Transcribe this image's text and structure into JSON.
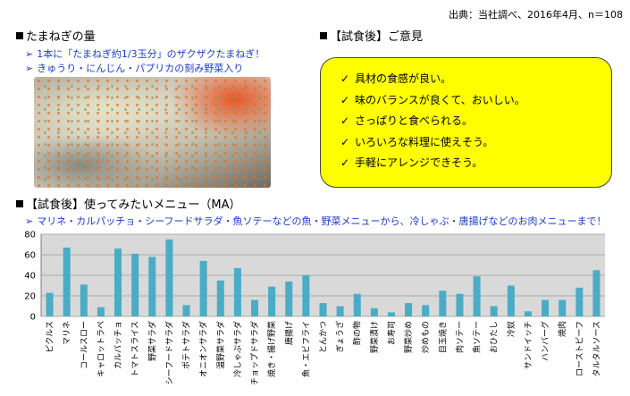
{
  "source": "出典：当社調べ、2016年4月、n＝108",
  "onion": {
    "title": "たまねぎの量",
    "bullets": [
      "1本に「たまねぎ約1/3玉分」のザクザクたまねぎ！",
      "きゅうり・にんじん・パプリカの刻み野菜入り"
    ]
  },
  "opinion": {
    "title": "【試食後】ご意見",
    "check_icon": "check-icon",
    "items": [
      "具材の食感が良い。",
      "味のバランスが良くて、おいしい。",
      "さっぱりと食べられる。",
      "いろいろな料理に使えそう。",
      "手軽にアレンジできそう。"
    ]
  },
  "menu": {
    "title": "【試食後】使ってみたいメニュー（MA）",
    "bullet": "マリネ・カルパッチョ・シーフードサラダ・魚ソテーなどの魚・野菜メニューから、冷しゃぶ・唐揚げなどのお肉メニューまで！"
  },
  "colors": {
    "bar": "#4bacc6",
    "plot_bg": "#d9d9d9",
    "box": "#ffff00",
    "bullet_text": "#1a3ccf"
  },
  "chart_data": {
    "type": "bar",
    "ylim": [
      0,
      80
    ],
    "yticks": [
      0,
      20,
      40,
      60,
      80
    ],
    "grid": true,
    "categories": [
      "ピクルス",
      "マリネ",
      "コールスロー",
      "キャロットラペ",
      "カルパッチョ",
      "トマトスライス",
      "野菜サラダ",
      "シーフードサラダ",
      "ポテトサラダ",
      "オニオンサラダ",
      "温野菜サラダ",
      "冷しゃぶサラダ",
      "チョップドサラダ",
      "焼き・揚げ野菜",
      "唐揚げ",
      "魚・エビフライ",
      "とんかつ",
      "ぎょうざ",
      "酢の物",
      "野菜漬け",
      "お寿司",
      "野菜炒め",
      "炒めもの",
      "目玉焼き",
      "肉ソテー",
      "魚ソテー",
      "おひたし",
      "冷奴",
      "サンドイッチ",
      "ハンバーグ",
      "焼肉",
      "ローストビーフ",
      "タルタルソース"
    ],
    "values": [
      23,
      67,
      31,
      9,
      66,
      61,
      58,
      75,
      11,
      54,
      35,
      47,
      16,
      29,
      34,
      40,
      13,
      10,
      22,
      8,
      4,
      13,
      11,
      25,
      22,
      39,
      10,
      30,
      5,
      16,
      16,
      28,
      45
    ]
  }
}
